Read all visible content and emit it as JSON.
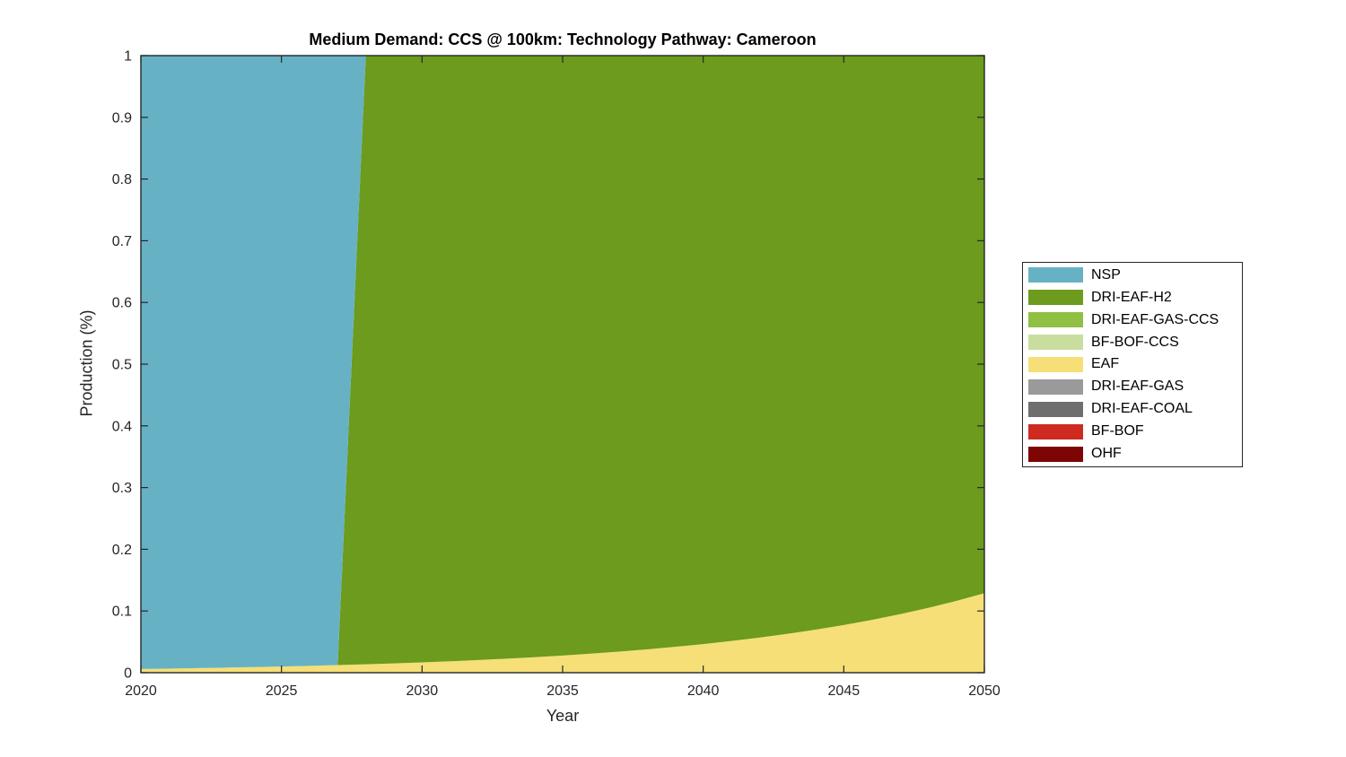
{
  "title": "Medium Demand: CCS @ 100km: Technology Pathway: Cameroon",
  "xlabel": "Year",
  "ylabel": "Production (%)",
  "colors": {
    "axis": "#262626",
    "title_text": "#000000",
    "background": "#ffffff"
  },
  "chart_data": {
    "type": "area",
    "stacked": true,
    "title": "Medium Demand: CCS @ 100km: Technology Pathway: Cameroon",
    "xlabel": "Year",
    "ylabel": "Production (%)",
    "xlim": [
      2020,
      2050
    ],
    "ylim": [
      0,
      1
    ],
    "x_ticks": [
      2020,
      2025,
      2030,
      2035,
      2040,
      2045,
      2050
    ],
    "y_ticks": [
      {
        "v": 0,
        "label": "0"
      },
      {
        "v": 0.1,
        "label": "0.1"
      },
      {
        "v": 0.2,
        "label": "0.2"
      },
      {
        "v": 0.3,
        "label": "0.3"
      },
      {
        "v": 0.4,
        "label": "0.4"
      },
      {
        "v": 0.5,
        "label": "0.5"
      },
      {
        "v": 0.6,
        "label": "0.6"
      },
      {
        "v": 0.7,
        "label": "0.7"
      },
      {
        "v": 0.8,
        "label": "0.8"
      },
      {
        "v": 0.9,
        "label": "0.9"
      },
      {
        "v": 1,
        "label": "1"
      }
    ],
    "grid": false,
    "legend_position": "right-outside",
    "x": [
      2020,
      2021,
      2022,
      2023,
      2024,
      2025,
      2026,
      2027,
      2028,
      2029,
      2030,
      2031,
      2032,
      2033,
      2034,
      2035,
      2036,
      2037,
      2038,
      2039,
      2040,
      2041,
      2042,
      2043,
      2044,
      2045,
      2046,
      2047,
      2048,
      2049,
      2050
    ],
    "stack_order_bottom_to_top": [
      "OHF",
      "BF-BOF",
      "DRI-EAF-COAL",
      "DRI-EAF-GAS",
      "EAF",
      "BF-BOF-CCS",
      "DRI-EAF-GAS-CCS",
      "DRI-EAF-H2",
      "NSP"
    ],
    "series": [
      {
        "name": "NSP",
        "color": "#66B2C4",
        "values": [
          0.994,
          0.9934,
          0.9926,
          0.9918,
          0.991,
          0.99,
          0.9889,
          0.9877,
          0,
          0,
          0,
          0,
          0,
          0,
          0,
          0,
          0,
          0,
          0,
          0,
          0,
          0,
          0,
          0,
          0,
          0,
          0,
          0,
          0,
          0,
          0
        ]
      },
      {
        "name": "DRI-EAF-H2",
        "color": "#6C9B1D",
        "values": [
          0,
          0,
          0,
          0,
          0,
          0,
          0,
          0,
          0.9864,
          0.9849,
          0.9833,
          0.9815,
          0.9795,
          0.9773,
          0.9749,
          0.9722,
          0.9692,
          0.9659,
          0.9622,
          0.9581,
          0.9536,
          0.9486,
          0.9431,
          0.937,
          0.9302,
          0.9227,
          0.9144,
          0.9052,
          0.895,
          0.8837,
          0.8712
        ]
      },
      {
        "name": "DRI-EAF-GAS-CCS",
        "color": "#8FC043",
        "values": [
          0,
          0,
          0,
          0,
          0,
          0,
          0,
          0,
          0,
          0,
          0,
          0,
          0,
          0,
          0,
          0,
          0,
          0,
          0,
          0,
          0,
          0,
          0,
          0,
          0,
          0,
          0,
          0,
          0,
          0,
          0
        ]
      },
      {
        "name": "BF-BOF-CCS",
        "color": "#C9DE9E",
        "values": [
          0,
          0,
          0,
          0,
          0,
          0,
          0,
          0,
          0,
          0,
          0,
          0,
          0,
          0,
          0,
          0,
          0,
          0,
          0,
          0,
          0,
          0,
          0,
          0,
          0,
          0,
          0,
          0,
          0,
          0,
          0
        ]
      },
      {
        "name": "EAF",
        "color": "#F6DF77",
        "values": [
          0.006,
          0.0066,
          0.0074,
          0.0082,
          0.009,
          0.01,
          0.0111,
          0.0123,
          0.0136,
          0.0151,
          0.0167,
          0.0185,
          0.0205,
          0.0227,
          0.0251,
          0.0278,
          0.0308,
          0.0341,
          0.0378,
          0.0419,
          0.0464,
          0.0514,
          0.0569,
          0.063,
          0.0698,
          0.0773,
          0.0856,
          0.0948,
          0.105,
          0.1163,
          0.1288
        ]
      },
      {
        "name": "DRI-EAF-GAS",
        "color": "#9A9A9A",
        "values": [
          0,
          0,
          0,
          0,
          0,
          0,
          0,
          0,
          0,
          0,
          0,
          0,
          0,
          0,
          0,
          0,
          0,
          0,
          0,
          0,
          0,
          0,
          0,
          0,
          0,
          0,
          0,
          0,
          0,
          0,
          0
        ]
      },
      {
        "name": "DRI-EAF-COAL",
        "color": "#6E6E6E",
        "values": [
          0,
          0,
          0,
          0,
          0,
          0,
          0,
          0,
          0,
          0,
          0,
          0,
          0,
          0,
          0,
          0,
          0,
          0,
          0,
          0,
          0,
          0,
          0,
          0,
          0,
          0,
          0,
          0,
          0,
          0,
          0
        ]
      },
      {
        "name": "BF-BOF",
        "color": "#CE2A20",
        "values": [
          0,
          0,
          0,
          0,
          0,
          0,
          0,
          0,
          0,
          0,
          0,
          0,
          0,
          0,
          0,
          0,
          0,
          0,
          0,
          0,
          0,
          0,
          0,
          0,
          0,
          0,
          0,
          0,
          0,
          0,
          0
        ]
      },
      {
        "name": "OHF",
        "color": "#7D0605",
        "values": [
          0,
          0,
          0,
          0,
          0,
          0,
          0,
          0,
          0,
          0,
          0,
          0,
          0,
          0,
          0,
          0,
          0,
          0,
          0,
          0,
          0,
          0,
          0,
          0,
          0,
          0,
          0,
          0,
          0,
          0,
          0
        ]
      }
    ]
  }
}
